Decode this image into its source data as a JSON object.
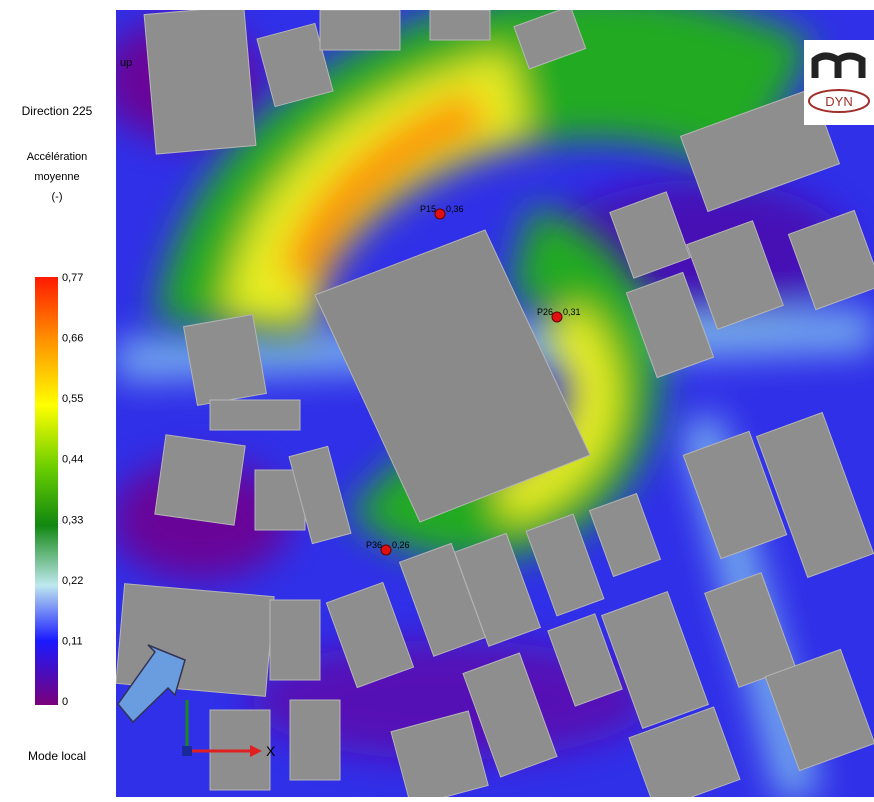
{
  "legend": {
    "direction": "Direction  225",
    "quantity_line1": "Accélération",
    "quantity_line2": "moyenne",
    "unit": "(-)",
    "ticks": [
      "0,77",
      "0,66",
      "0,55",
      "0,44",
      "0,33",
      "0,22",
      "0,11",
      "0"
    ],
    "mode": "Mode local"
  },
  "map": {
    "corner_text": "up",
    "axis_x": "X",
    "probes": [
      {
        "name": "P15",
        "value": "0,36"
      },
      {
        "name": "P26",
        "value": "0,31"
      },
      {
        "name": "P36",
        "value": "0,26"
      }
    ]
  },
  "logo": {
    "text": "DYN"
  }
}
